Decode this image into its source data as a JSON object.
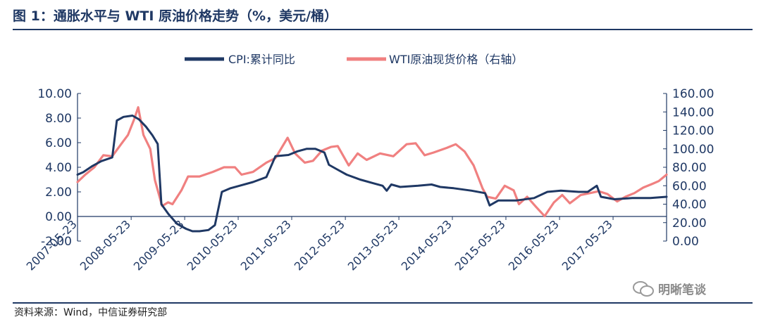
{
  "title": "图 1：通胀水平与 WTI 原油价格走势（%，美元/桶）",
  "source": "资料来源：Wind，中信证券研究部",
  "watermark": "明晰笔谈",
  "chart_data": {
    "type": "line",
    "x_start": "2007-05-23",
    "x_end": "2018-05-23",
    "xticks": [
      "2007-05-23",
      "2008-05-23",
      "2009-05-23",
      "2010-05-23",
      "2011-05-23",
      "2012-05-23",
      "2013-05-23",
      "2014-05-23",
      "2015-05-23",
      "2016-05-23",
      "2017-05-23"
    ],
    "y_left": {
      "lim": [
        -2,
        10
      ],
      "ticks": [
        "-2.00",
        "0.00",
        "2.00",
        "4.00",
        "6.00",
        "8.00",
        "10.00"
      ]
    },
    "y_right": {
      "lim": [
        0,
        160
      ],
      "ticks": [
        "0.00",
        "20.00",
        "40.00",
        "60.00",
        "80.00",
        "100.00",
        "120.00",
        "140.00",
        "160.00"
      ]
    },
    "legend_position": "top-center",
    "series": [
      {
        "name": "CPI:累计同比",
        "axis": "left",
        "color": "#1f3864",
        "points": [
          [
            "2007-05-23",
            3.4
          ],
          [
            "2007-07-01",
            3.6
          ],
          [
            "2007-09-01",
            4.1
          ],
          [
            "2007-11-01",
            4.5
          ],
          [
            "2008-01-15",
            4.8
          ],
          [
            "2008-02-15",
            7.8
          ],
          [
            "2008-04-01",
            8.1
          ],
          [
            "2008-06-01",
            8.2
          ],
          [
            "2008-07-15",
            7.9
          ],
          [
            "2008-09-01",
            7.3
          ],
          [
            "2008-10-15",
            6.6
          ],
          [
            "2008-11-20",
            5.9
          ],
          [
            "2008-12-15",
            1.0
          ],
          [
            "2009-02-01",
            0.2
          ],
          [
            "2009-04-01",
            -0.6
          ],
          [
            "2009-06-01",
            -1.0
          ],
          [
            "2009-07-15",
            -1.2
          ],
          [
            "2009-09-01",
            -1.2
          ],
          [
            "2009-11-01",
            -1.1
          ],
          [
            "2009-12-15",
            -0.7
          ],
          [
            "2010-02-01",
            2.0
          ],
          [
            "2010-04-01",
            2.3
          ],
          [
            "2010-06-01",
            2.5
          ],
          [
            "2010-09-01",
            2.8
          ],
          [
            "2010-12-01",
            3.2
          ],
          [
            "2011-02-01",
            4.9
          ],
          [
            "2011-05-01",
            5.0
          ],
          [
            "2011-07-01",
            5.3
          ],
          [
            "2011-09-01",
            5.5
          ],
          [
            "2011-11-01",
            5.5
          ],
          [
            "2012-01-01",
            5.2
          ],
          [
            "2012-02-01",
            4.2
          ],
          [
            "2012-04-01",
            3.8
          ],
          [
            "2012-06-01",
            3.4
          ],
          [
            "2012-09-01",
            3.0
          ],
          [
            "2012-12-01",
            2.7
          ],
          [
            "2013-02-01",
            2.5
          ],
          [
            "2013-03-01",
            2.1
          ],
          [
            "2013-04-01",
            2.6
          ],
          [
            "2013-06-01",
            2.4
          ],
          [
            "2013-10-01",
            2.5
          ],
          [
            "2014-01-01",
            2.6
          ],
          [
            "2014-03-01",
            2.4
          ],
          [
            "2014-06-01",
            2.3
          ],
          [
            "2014-10-01",
            2.1
          ],
          [
            "2015-01-01",
            1.9
          ],
          [
            "2015-02-01",
            0.9
          ],
          [
            "2015-04-01",
            1.3
          ],
          [
            "2015-08-01",
            1.3
          ],
          [
            "2015-12-01",
            1.5
          ],
          [
            "2016-03-01",
            2.0
          ],
          [
            "2016-06-01",
            2.1
          ],
          [
            "2016-10-01",
            2.0
          ],
          [
            "2016-12-01",
            2.0
          ],
          [
            "2017-02-01",
            2.5
          ],
          [
            "2017-03-01",
            1.6
          ],
          [
            "2017-06-01",
            1.4
          ],
          [
            "2017-10-01",
            1.5
          ],
          [
            "2018-02-01",
            1.5
          ],
          [
            "2018-05-23",
            1.6
          ]
        ]
      },
      {
        "name": "WTI原油现货价格（右轴）",
        "axis": "right",
        "color": "#f08080",
        "points": [
          [
            "2007-05-23",
            64
          ],
          [
            "2007-07-15",
            72
          ],
          [
            "2007-09-15",
            80
          ],
          [
            "2007-11-15",
            93
          ],
          [
            "2008-01-15",
            92
          ],
          [
            "2008-03-15",
            105
          ],
          [
            "2008-05-01",
            115
          ],
          [
            "2008-06-15",
            133
          ],
          [
            "2008-07-10",
            145
          ],
          [
            "2008-08-15",
            115
          ],
          [
            "2008-09-30",
            100
          ],
          [
            "2008-11-01",
            66
          ],
          [
            "2008-12-20",
            38
          ],
          [
            "2009-01-30",
            42
          ],
          [
            "2009-03-01",
            40
          ],
          [
            "2009-05-01",
            55
          ],
          [
            "2009-06-15",
            70
          ],
          [
            "2009-09-01",
            70
          ],
          [
            "2009-12-01",
            75
          ],
          [
            "2010-02-15",
            80
          ],
          [
            "2010-05-01",
            80
          ],
          [
            "2010-06-15",
            72
          ],
          [
            "2010-09-01",
            75
          ],
          [
            "2010-12-01",
            85
          ],
          [
            "2011-02-01",
            90
          ],
          [
            "2011-04-25",
            112
          ],
          [
            "2011-06-15",
            95
          ],
          [
            "2011-08-20",
            85
          ],
          [
            "2011-10-15",
            87
          ],
          [
            "2011-12-15",
            98
          ],
          [
            "2012-02-15",
            102
          ],
          [
            "2012-04-01",
            103
          ],
          [
            "2012-06-15",
            82
          ],
          [
            "2012-08-15",
            95
          ],
          [
            "2012-10-15",
            88
          ],
          [
            "2013-01-15",
            95
          ],
          [
            "2013-04-15",
            92
          ],
          [
            "2013-07-15",
            105
          ],
          [
            "2013-09-15",
            106
          ],
          [
            "2013-11-15",
            93
          ],
          [
            "2014-01-15",
            96
          ],
          [
            "2014-04-15",
            101
          ],
          [
            "2014-06-15",
            105
          ],
          [
            "2014-08-15",
            97
          ],
          [
            "2014-10-15",
            82
          ],
          [
            "2014-12-15",
            57
          ],
          [
            "2015-01-15",
            48
          ],
          [
            "2015-03-15",
            46
          ],
          [
            "2015-05-15",
            60
          ],
          [
            "2015-07-15",
            55
          ],
          [
            "2015-08-20",
            40
          ],
          [
            "2015-10-15",
            48
          ],
          [
            "2015-12-15",
            37
          ],
          [
            "2016-02-11",
            27
          ],
          [
            "2016-04-15",
            42
          ],
          [
            "2016-06-10",
            50
          ],
          [
            "2016-08-01",
            41
          ],
          [
            "2016-10-15",
            50
          ],
          [
            "2016-12-15",
            52
          ],
          [
            "2017-02-15",
            54
          ],
          [
            "2017-04-15",
            51
          ],
          [
            "2017-06-20",
            43
          ],
          [
            "2017-08-15",
            48
          ],
          [
            "2017-10-15",
            52
          ],
          [
            "2017-12-15",
            58
          ],
          [
            "2018-02-15",
            62
          ],
          [
            "2018-03-30",
            65
          ],
          [
            "2018-05-23",
            72
          ]
        ]
      }
    ]
  }
}
